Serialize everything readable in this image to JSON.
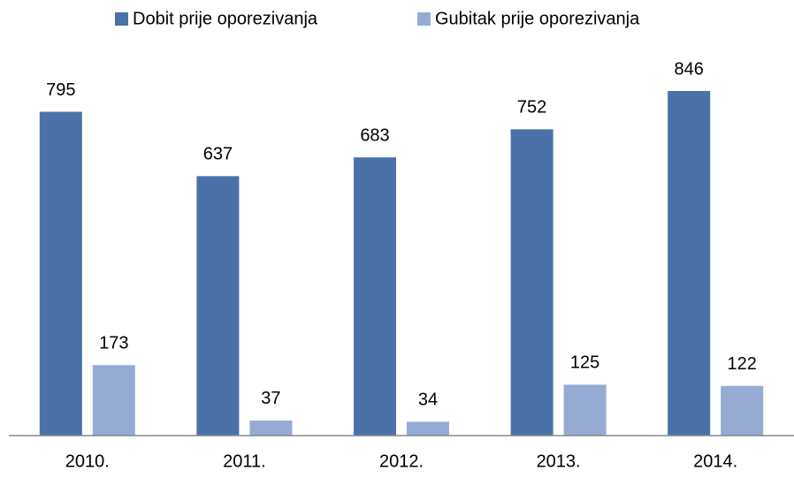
{
  "chart_data": {
    "type": "bar",
    "categories": [
      "2010.",
      "2011.",
      "2012.",
      "2013.",
      "2014."
    ],
    "series": [
      {
        "name": "Dobit prije oporezivanja",
        "color": "#4a72a8",
        "values": [
          795,
          637,
          683,
          752,
          846
        ]
      },
      {
        "name": "Gubitak prije oporezivanja",
        "color": "#95abd3",
        "values": [
          173,
          37,
          34,
          125,
          122
        ]
      }
    ],
    "legend": "top"
  }
}
